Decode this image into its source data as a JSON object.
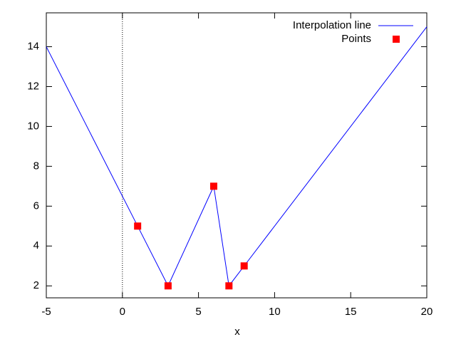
{
  "chart_data": {
    "type": "line",
    "xlabel": "x",
    "series": [
      {
        "name": "Interpolation line",
        "color": "#0000ff",
        "style": "line",
        "x": [
          -5,
          1,
          3,
          6,
          7,
          8,
          20
        ],
        "values": [
          14,
          5,
          2,
          7,
          2,
          3,
          15
        ]
      },
      {
        "name": "Points",
        "color": "#ff0000",
        "style": "points",
        "x": [
          1,
          3,
          6,
          7,
          8
        ],
        "values": [
          5,
          2,
          7,
          2,
          3
        ]
      }
    ],
    "xlim": [
      -5,
      20
    ],
    "xticks": [
      -5,
      0,
      5,
      10,
      15,
      20
    ],
    "ylim": [
      1.4,
      15.7
    ],
    "yticks": [
      2,
      4,
      6,
      8,
      10,
      12,
      14
    ],
    "zero_axis": true,
    "legend": "top-right"
  }
}
